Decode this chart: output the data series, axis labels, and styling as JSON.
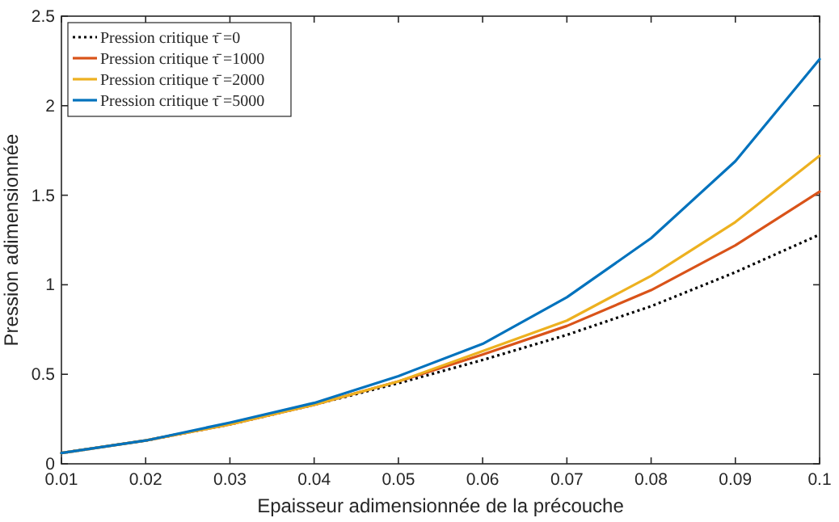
{
  "chart_data": {
    "type": "line",
    "xlabel": "Epaisseur adimensionnée de la précouche",
    "ylabel": "Pression adimensionnée",
    "x": [
      0.01,
      0.02,
      0.03,
      0.04,
      0.05,
      0.06,
      0.07,
      0.08,
      0.09,
      0.1
    ],
    "xlim": [
      0.01,
      0.1
    ],
    "xticks": [
      0.01,
      0.02,
      0.03,
      0.04,
      0.05,
      0.06,
      0.07,
      0.08,
      0.09,
      0.1
    ],
    "ylim": [
      0,
      2.5
    ],
    "yticks": [
      0,
      0.5,
      1,
      1.5,
      2,
      2.5
    ],
    "grid": false,
    "legend": "top left",
    "marker": "none",
    "series": [
      {
        "name": "Pression critique τ̄ =0",
        "color": "#000000",
        "line_style": "dotted",
        "values": [
          0.06,
          0.13,
          0.22,
          0.33,
          0.45,
          0.58,
          0.72,
          0.88,
          1.07,
          1.28
        ]
      },
      {
        "name": "Pression critique τ̄ =1000",
        "color": "#d95319",
        "line_style": "solid",
        "values": [
          0.06,
          0.13,
          0.22,
          0.33,
          0.46,
          0.61,
          0.77,
          0.97,
          1.22,
          1.52
        ]
      },
      {
        "name": "Pression critique τ̄ =2000",
        "color": "#edb120",
        "line_style": "solid",
        "values": [
          0.06,
          0.13,
          0.22,
          0.33,
          0.46,
          0.63,
          0.8,
          1.05,
          1.35,
          1.72
        ]
      },
      {
        "name": "Pression critique τ̄ =5000",
        "color": "#0072bd",
        "line_style": "solid",
        "values": [
          0.06,
          0.13,
          0.23,
          0.34,
          0.49,
          0.67,
          0.93,
          1.26,
          1.69,
          2.26
        ]
      }
    ]
  }
}
